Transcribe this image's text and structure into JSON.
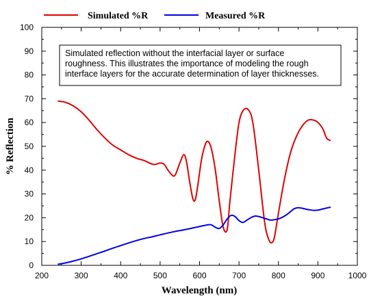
{
  "chart_data": {
    "type": "line",
    "xlabel": "Wavelength (nm)",
    "ylabel": "% Reflection",
    "xlim": [
      200,
      1000
    ],
    "ylim": [
      0,
      100
    ],
    "xticks": [
      200,
      300,
      400,
      500,
      600,
      700,
      800,
      900,
      1000
    ],
    "yticks": [
      0,
      10,
      20,
      30,
      40,
      50,
      60,
      70,
      80,
      90,
      100
    ],
    "grid": false,
    "legend_position": "top",
    "annotation": {
      "lines": [
        "Simulated reflection without the interfacial layer or surface",
        "roughness. This illustrates the importance of modeling the rough",
        "interface layers for the accurate determination of layer thicknesses."
      ]
    },
    "series": [
      {
        "name": "Simulated %R",
        "color": "#e00000",
        "x": [
          242,
          260,
          280,
          300,
          320,
          340,
          360,
          380,
          400,
          420,
          440,
          460,
          480,
          490,
          500,
          510,
          520,
          530,
          535,
          540,
          550,
          560,
          567,
          575,
          583,
          589,
          595,
          605,
          615,
          622,
          630,
          640,
          650,
          660,
          670,
          677,
          690,
          700,
          710,
          723,
          735,
          750,
          765,
          775,
          783,
          790,
          800,
          815,
          830,
          845,
          860,
          875,
          890,
          900,
          912,
          922,
          931
        ],
        "y": [
          69,
          68.5,
          67,
          64.5,
          61,
          57,
          53.5,
          50.5,
          48.5,
          46.5,
          45,
          44,
          42.5,
          42.5,
          43,
          42.5,
          40,
          38,
          37.5,
          38.5,
          43,
          46.5,
          43.5,
          35,
          28,
          27.5,
          33,
          44.5,
          51,
          52,
          49,
          40,
          27,
          16,
          15,
          27,
          47,
          60,
          65,
          65.5,
          60,
          40,
          18,
          11,
          9.5,
          12,
          22,
          36,
          47,
          54,
          58.5,
          61,
          61,
          60,
          57.5,
          53.5,
          52.5
        ]
      },
      {
        "name": "Measured %R",
        "color": "#0000e0",
        "x": [
          242,
          260,
          280,
          300,
          320,
          340,
          360,
          380,
          400,
          420,
          440,
          460,
          480,
          500,
          520,
          540,
          560,
          580,
          600,
          620,
          630,
          640,
          650,
          660,
          670,
          680,
          690,
          700,
          710,
          720,
          730,
          740,
          750,
          760,
          770,
          780,
          790,
          800,
          810,
          820,
          830,
          840,
          850,
          860,
          870,
          880,
          890,
          900,
          910,
          920,
          931
        ],
        "y": [
          0.5,
          1,
          1.8,
          2.7,
          3.8,
          4.9,
          6,
          7.2,
          8.3,
          9.4,
          10.4,
          11.3,
          12,
          12.8,
          13.6,
          14.3,
          14.9,
          15.6,
          16.3,
          17,
          17,
          16,
          15.5,
          17,
          19.5,
          21,
          20.5,
          18.8,
          18,
          19,
          20,
          20.7,
          20.5,
          20,
          19.5,
          19,
          19.2,
          19.5,
          20.2,
          21.2,
          22.5,
          23.8,
          24.2,
          24,
          23.6,
          23.3,
          23.1,
          23.2,
          23.6,
          24,
          24.4
        ]
      }
    ]
  }
}
